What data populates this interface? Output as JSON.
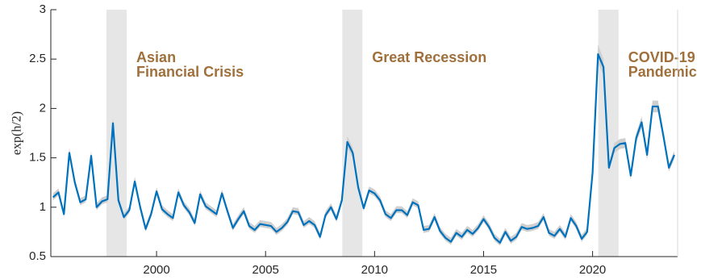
{
  "chart_data": {
    "type": "line",
    "ylabel": "exp(h/2)",
    "x": [
      1995.25,
      1995.5,
      1995.75,
      1996,
      1996.25,
      1996.5,
      1996.75,
      1997,
      1997.25,
      1997.5,
      1997.75,
      1998,
      1998.25,
      1998.5,
      1998.75,
      1999,
      1999.25,
      1999.5,
      1999.75,
      2000,
      2000.25,
      2000.5,
      2000.75,
      2001,
      2001.25,
      2001.5,
      2001.75,
      2002,
      2002.25,
      2002.5,
      2002.75,
      2003,
      2003.25,
      2003.5,
      2003.75,
      2004,
      2004.25,
      2004.5,
      2004.75,
      2005,
      2005.25,
      2005.5,
      2005.75,
      2006,
      2006.25,
      2006.5,
      2006.75,
      2007,
      2007.25,
      2007.5,
      2007.75,
      2008,
      2008.25,
      2008.5,
      2008.75,
      2009,
      2009.25,
      2009.5,
      2009.75,
      2010,
      2010.25,
      2010.5,
      2010.75,
      2011,
      2011.25,
      2011.5,
      2011.75,
      2012,
      2012.25,
      2012.5,
      2012.75,
      2013,
      2013.25,
      2013.5,
      2013.75,
      2014,
      2014.25,
      2014.5,
      2014.75,
      2015,
      2015.25,
      2015.5,
      2015.75,
      2016,
      2016.25,
      2016.5,
      2016.75,
      2017,
      2017.25,
      2017.5,
      2017.75,
      2018,
      2018.25,
      2018.5,
      2018.75,
      2019,
      2019.25,
      2019.5,
      2019.75,
      2020,
      2020.25,
      2020.5,
      2020.75,
      2021,
      2021.25,
      2021.5,
      2021.75,
      2022,
      2022.25,
      2022.5,
      2022.75,
      2023,
      2023.25,
      2023.5,
      2023.75
    ],
    "values": [
      1.1,
      1.15,
      0.93,
      1.55,
      1.25,
      1.05,
      1.08,
      1.52,
      1.0,
      1.06,
      1.08,
      1.85,
      1.07,
      0.9,
      0.97,
      1.26,
      1.0,
      0.78,
      0.93,
      1.16,
      0.98,
      0.93,
      0.89,
      1.15,
      1.02,
      0.95,
      0.84,
      1.13,
      1.01,
      0.97,
      0.93,
      1.14,
      0.96,
      0.79,
      0.88,
      0.96,
      0.81,
      0.77,
      0.83,
      0.82,
      0.81,
      0.75,
      0.79,
      0.85,
      0.96,
      0.95,
      0.82,
      0.86,
      0.82,
      0.7,
      0.92,
      1.0,
      0.88,
      1.07,
      1.66,
      1.55,
      1.2,
      0.99,
      1.17,
      1.14,
      1.07,
      0.93,
      0.89,
      0.97,
      0.97,
      0.92,
      1.05,
      1.02,
      0.77,
      0.78,
      0.9,
      0.76,
      0.69,
      0.65,
      0.74,
      0.7,
      0.77,
      0.73,
      0.79,
      0.88,
      0.8,
      0.69,
      0.64,
      0.75,
      0.66,
      0.7,
      0.8,
      0.78,
      0.79,
      0.81,
      0.9,
      0.74,
      0.71,
      0.78,
      0.7,
      0.89,
      0.81,
      0.68,
      0.75,
      1.35,
      2.55,
      2.42,
      1.4,
      1.6,
      1.64,
      1.65,
      1.32,
      1.7,
      1.86,
      1.53,
      2.02,
      2.02,
      1.72,
      1.4,
      1.53
    ],
    "color": "#0072bd",
    "band": {
      "color": "#cfcfcf",
      "lower": [
        1.07,
        1.12,
        0.9,
        1.51,
        1.22,
        1.02,
        1.05,
        1.48,
        0.97,
        1.03,
        1.05,
        1.79,
        1.04,
        0.87,
        0.94,
        1.22,
        0.97,
        0.75,
        0.9,
        1.13,
        0.95,
        0.9,
        0.86,
        1.12,
        0.99,
        0.92,
        0.81,
        1.1,
        0.98,
        0.94,
        0.9,
        1.11,
        0.93,
        0.76,
        0.85,
        0.93,
        0.78,
        0.74,
        0.8,
        0.79,
        0.78,
        0.72,
        0.76,
        0.82,
        0.93,
        0.92,
        0.79,
        0.83,
        0.79,
        0.67,
        0.89,
        0.97,
        0.85,
        1.04,
        1.6,
        1.5,
        1.16,
        0.96,
        1.14,
        1.11,
        1.04,
        0.9,
        0.86,
        0.94,
        0.94,
        0.89,
        1.02,
        0.99,
        0.74,
        0.75,
        0.87,
        0.73,
        0.66,
        0.62,
        0.71,
        0.67,
        0.74,
        0.7,
        0.76,
        0.85,
        0.77,
        0.66,
        0.61,
        0.72,
        0.63,
        0.67,
        0.77,
        0.75,
        0.76,
        0.78,
        0.87,
        0.71,
        0.68,
        0.75,
        0.67,
        0.86,
        0.78,
        0.65,
        0.72,
        1.3,
        2.46,
        2.34,
        1.36,
        1.55,
        1.59,
        1.6,
        1.28,
        1.65,
        1.8,
        1.48,
        1.96,
        1.96,
        1.67,
        1.36,
        1.49
      ],
      "upper": [
        1.14,
        1.19,
        0.97,
        1.6,
        1.29,
        1.09,
        1.12,
        1.57,
        1.04,
        1.1,
        1.12,
        1.91,
        1.11,
        0.94,
        1.01,
        1.31,
        1.04,
        0.82,
        0.97,
        1.2,
        1.02,
        0.97,
        0.93,
        1.19,
        1.06,
        0.99,
        0.88,
        1.17,
        1.05,
        1.01,
        0.97,
        1.18,
        1.0,
        0.83,
        0.92,
        1.0,
        0.85,
        0.81,
        0.87,
        0.86,
        0.85,
        0.79,
        0.83,
        0.89,
        1.0,
        0.99,
        0.86,
        0.9,
        0.86,
        0.74,
        0.96,
        1.04,
        0.92,
        1.11,
        1.72,
        1.6,
        1.24,
        1.03,
        1.21,
        1.18,
        1.11,
        0.97,
        0.93,
        1.01,
        1.01,
        0.96,
        1.09,
        1.06,
        0.81,
        0.82,
        0.94,
        0.8,
        0.73,
        0.69,
        0.78,
        0.74,
        0.81,
        0.77,
        0.83,
        0.92,
        0.84,
        0.73,
        0.68,
        0.79,
        0.7,
        0.74,
        0.84,
        0.82,
        0.83,
        0.85,
        0.94,
        0.78,
        0.75,
        0.82,
        0.74,
        0.93,
        0.85,
        0.72,
        0.79,
        1.4,
        2.65,
        2.5,
        1.44,
        1.65,
        1.69,
        1.7,
        1.36,
        1.75,
        1.92,
        1.58,
        2.08,
        2.08,
        1.77,
        1.44,
        1.57
      ]
    },
    "shaded": {
      "color": "#e6e6e6",
      "label_color": "#a0703c",
      "spans": [
        {
          "start": 1997.7,
          "end": 1998.63,
          "label": [
            "Asian",
            "Financial Crisis"
          ]
        },
        {
          "start": 2008.52,
          "end": 2009.44,
          "label": [
            "Great Recession"
          ]
        },
        {
          "start": 2020.26,
          "end": 2021.19,
          "label": [
            "COVID-19",
            "Pandemic"
          ]
        }
      ]
    },
    "xlim": [
      1995.15,
      2023.9
    ],
    "ylim": [
      0.5,
      3
    ],
    "xticks": [
      2000,
      2005,
      2010,
      2015,
      2020
    ],
    "yticks": [
      0.5,
      1,
      1.5,
      2,
      2.5,
      3
    ]
  }
}
